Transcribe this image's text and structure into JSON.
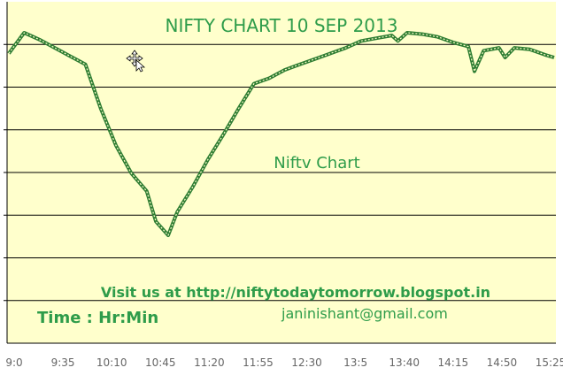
{
  "chart_data": {
    "type": "line",
    "title": "NIFTY CHART 10 SEP 2013",
    "series_label": "Niftv Chart",
    "annotations": {
      "visit": "Visit us at  http://niftytodaytomorrow.blogspot.in",
      "time": "Time : Hr:Min",
      "email": "janinishant@gmail.com"
    },
    "x_ticks": [
      "9:0",
      "9:35",
      "10:10",
      "10:45",
      "11:20",
      "11:55",
      "12:30",
      "13:5",
      "13:40",
      "14:15",
      "14:50",
      "15:25"
    ],
    "grid": true,
    "y_gridlines": 8,
    "colors": {
      "plot_bg": "#ffffcc",
      "line": "#2e7d32",
      "text": "#2e9c4a",
      "grid": "#000000"
    },
    "series": [
      {
        "values": [
          [
            0,
            0.32
          ],
          [
            5,
            0.02
          ],
          [
            10,
            0.12
          ],
          [
            15,
            0.24
          ],
          [
            20,
            0.36
          ],
          [
            25,
            0.48
          ],
          [
            30,
            1.12
          ],
          [
            35,
            1.66
          ],
          [
            40,
            2.06
          ],
          [
            45,
            2.32
          ],
          [
            48,
            2.76
          ],
          [
            52,
            2.96
          ],
          [
            55,
            2.62
          ],
          [
            60,
            2.26
          ],
          [
            65,
            1.86
          ],
          [
            70,
            1.5
          ],
          [
            75,
            1.12
          ],
          [
            80,
            0.76
          ],
          [
            85,
            0.68
          ],
          [
            90,
            0.56
          ],
          [
            95,
            0.48
          ],
          [
            100,
            0.4
          ],
          [
            105,
            0.32
          ],
          [
            110,
            0.24
          ],
          [
            115,
            0.14
          ],
          [
            120,
            0.1
          ],
          [
            125,
            0.06
          ],
          [
            127,
            0.14
          ],
          [
            130,
            0.02
          ],
          [
            135,
            0.04
          ],
          [
            140,
            0.08
          ],
          [
            145,
            0.16
          ],
          [
            150,
            0.22
          ],
          [
            152,
            0.58
          ],
          [
            155,
            0.28
          ],
          [
            160,
            0.24
          ],
          [
            162,
            0.38
          ],
          [
            165,
            0.24
          ],
          [
            170,
            0.26
          ],
          [
            175,
            0.34
          ],
          [
            178,
            0.38
          ]
        ]
      }
    ]
  }
}
